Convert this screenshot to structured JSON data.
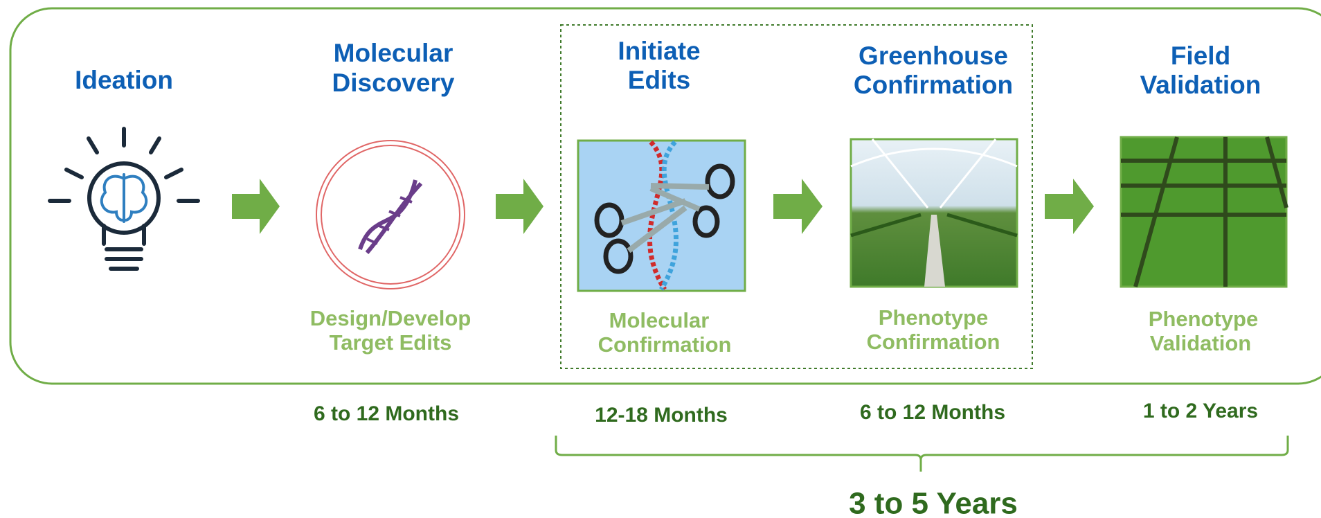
{
  "stages": [
    {
      "title": [
        "Ideation"
      ]
    },
    {
      "title": [
        "Molecular",
        "Discovery"
      ],
      "caption": [
        "Design/Develop",
        "Target Edits"
      ],
      "duration": "6 to 12 Months"
    },
    {
      "title": [
        "Initiate",
        "Edits"
      ],
      "caption": [
        "Molecular",
        "Confirmation"
      ],
      "duration": "12-18 Months"
    },
    {
      "title": [
        "Greenhouse",
        "Confirmation"
      ],
      "caption": [
        "Phenotype",
        "Confirmation"
      ],
      "duration": "6 to 12 Months"
    },
    {
      "title": [
        "Field",
        "Validation"
      ],
      "caption": [
        "Phenotype",
        "Validation"
      ],
      "duration": "1 to 2 Years"
    }
  ],
  "total_duration": "3 to 5 Years"
}
